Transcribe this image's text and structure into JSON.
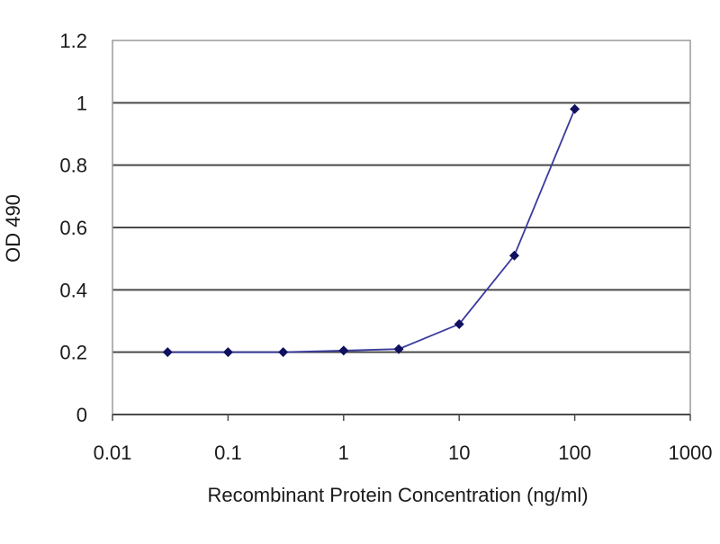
{
  "chart_data": {
    "type": "line",
    "title": "",
    "xlabel": "Recombinant Protein Concentration (ng/ml)",
    "ylabel": "OD 490",
    "x_scale": "log",
    "xlim": [
      0.01,
      1000
    ],
    "ylim": [
      0,
      1.2
    ],
    "x_ticks": [
      0.01,
      0.1,
      1,
      10,
      100,
      1000
    ],
    "x_tick_labels": [
      "0.01",
      "0.1",
      "1",
      "10",
      "100",
      "1000"
    ],
    "y_ticks": [
      0,
      0.2,
      0.4,
      0.6,
      0.8,
      1,
      1.2
    ],
    "y_tick_labels": [
      "0",
      "0.2",
      "0.4",
      "0.6",
      "0.8",
      "1",
      "1.2"
    ],
    "grid": "horizontal",
    "legend": "none",
    "series": [
      {
        "x": [
          0.03,
          0.1,
          0.3,
          1,
          3,
          10,
          30,
          100
        ],
        "y": [
          0.2,
          0.2,
          0.2,
          0.205,
          0.21,
          0.29,
          0.51,
          0.98
        ],
        "line_color": "#3b3b9e",
        "marker_color": "#101060"
      }
    ],
    "colors": {
      "gridline": "#4a4a4a",
      "frame": "#9a9a9a"
    }
  }
}
